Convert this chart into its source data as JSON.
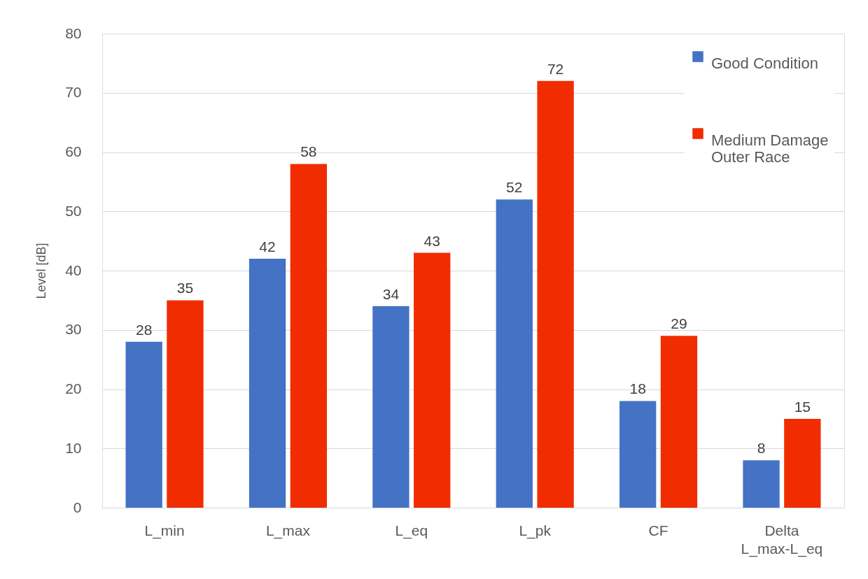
{
  "chart_data": {
    "type": "bar",
    "ylabel": "Level [dB]",
    "categories": [
      "L_min",
      "L_max",
      "L_eq",
      "L_pk",
      "CF",
      "Delta L_max-L_eq"
    ],
    "series": [
      {
        "name": "Good Condition",
        "color": "#4472c4",
        "values": [
          28,
          42,
          34,
          52,
          18,
          8
        ]
      },
      {
        "name": "Medium Damage Outer Race",
        "color": "#f12c00",
        "values": [
          35,
          58,
          43,
          72,
          29,
          15
        ]
      }
    ],
    "ylim": [
      0,
      80
    ],
    "yticks": [
      0,
      10,
      20,
      30,
      40,
      50,
      60,
      70,
      80
    ],
    "grid": "y",
    "legend": "top right",
    "data_labels": true
  }
}
